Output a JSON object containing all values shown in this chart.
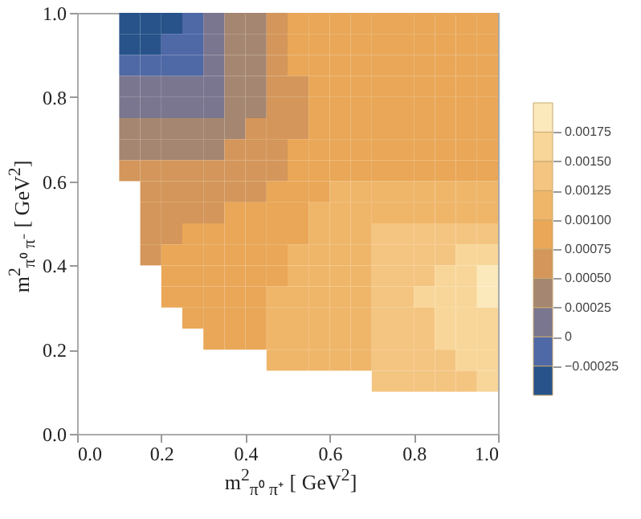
{
  "chart_data": {
    "type": "heatmap",
    "xlabel": "m$^{2}$$_{π⁰ π⁺}$ [ GeV$^{2}$]",
    "ylabel": "m$^{2}$$_{π⁰ π⁻}$ [ GeV$^{2}$]",
    "x": [
      0.025,
      0.075,
      0.125,
      0.175,
      0.225,
      0.275,
      0.325,
      0.375,
      0.425,
      0.475,
      0.525,
      0.575,
      0.625,
      0.675,
      0.725,
      0.775,
      0.825,
      0.875,
      0.925,
      0.975
    ],
    "y": [
      0.975,
      0.925,
      0.875,
      0.825,
      0.775,
      0.725,
      0.675,
      0.625,
      0.575,
      0.525,
      0.475,
      0.425,
      0.375,
      0.325,
      0.275,
      0.225,
      0.175,
      0.125
    ],
    "xlim": [
      0,
      1
    ],
    "ylim": [
      0,
      1
    ],
    "xticks": [
      {
        "value": 0,
        "label": "0.0"
      },
      0.2,
      0.4,
      0.6,
      0.8,
      {
        "value": 1,
        "label": "1.0"
      }
    ],
    "yticks": [
      {
        "value": 0,
        "label": "0.0"
      },
      0.2,
      0.4,
      0.6,
      0.8,
      {
        "value": 1,
        "label": "1.0"
      }
    ],
    "clim": [
      -0.0005,
      0.002
    ],
    "cticks": [
      {
        "value": -0.00025,
        "label": "−0.00025"
      },
      0,
      0.00025,
      {
        "value": 0.0005,
        "label": "0.00050"
      },
      0.00075,
      {
        "value": 0.001,
        "label": "0.00100"
      },
      0.00125,
      {
        "value": 0.0015,
        "label": "0.00150"
      },
      0.00175
    ],
    "colors": [
      "#27538a",
      "#4f68a6",
      "#7a768f",
      "#a58670",
      "#d4965a",
      "#e9a757",
      "#efb66a",
      "#f4c581",
      "#f8d699",
      "#fbe9bb"
    ],
    "cells": [
      [
        null,
        null,
        -0.0004,
        -0.0004,
        -0.0004,
        -0.000125,
        0.000125,
        0.000375,
        0.000375,
        0.000625,
        0.000875,
        0.000875,
        0.000875,
        0.000875,
        0.000875,
        0.000875,
        0.000875,
        0.000875,
        0.000875,
        0.000875
      ],
      [
        null,
        null,
        -0.0004,
        -0.0004,
        -0.000125,
        -0.000125,
        0.000125,
        0.000375,
        0.000375,
        0.000625,
        0.000875,
        0.000875,
        0.000875,
        0.000875,
        0.000875,
        0.000875,
        0.000875,
        0.000875,
        0.000875,
        0.000875
      ],
      [
        null,
        null,
        -0.000125,
        -0.000125,
        -0.000125,
        -0.000125,
        0.000125,
        0.000375,
        0.000375,
        0.000625,
        0.000875,
        0.000875,
        0.000875,
        0.000875,
        0.000875,
        0.000875,
        0.000875,
        0.000875,
        0.000875,
        0.000875
      ],
      [
        null,
        null,
        0.000125,
        0.000125,
        0.000125,
        0.000125,
        0.000125,
        0.000375,
        0.000375,
        0.000625,
        0.000625,
        0.000875,
        0.000875,
        0.000875,
        0.000875,
        0.000875,
        0.000875,
        0.000875,
        0.000875,
        0.000875
      ],
      [
        null,
        null,
        0.000125,
        0.000125,
        0.000125,
        0.000125,
        0.000125,
        0.000375,
        0.000375,
        0.000625,
        0.000625,
        0.000875,
        0.000875,
        0.000875,
        0.000875,
        0.000875,
        0.000875,
        0.000875,
        0.000875,
        0.000875
      ],
      [
        null,
        null,
        0.000375,
        0.000375,
        0.000375,
        0.000375,
        0.000375,
        0.000375,
        0.000625,
        0.000625,
        0.000625,
        0.000875,
        0.000875,
        0.000875,
        0.000875,
        0.000875,
        0.000875,
        0.000875,
        0.000875,
        0.000875
      ],
      [
        null,
        null,
        0.000375,
        0.000375,
        0.000375,
        0.000375,
        0.000375,
        0.000625,
        0.000625,
        0.000625,
        0.000875,
        0.000875,
        0.000875,
        0.000875,
        0.000875,
        0.000875,
        0.000875,
        0.000875,
        0.000875,
        0.000875
      ],
      [
        null,
        null,
        0.000625,
        0.000625,
        0.000625,
        0.000625,
        0.000625,
        0.000625,
        0.000625,
        0.000625,
        0.000875,
        0.000875,
        0.000875,
        0.000875,
        0.000875,
        0.000875,
        0.000875,
        0.000875,
        0.000875,
        0.000875
      ],
      [
        null,
        null,
        null,
        0.000625,
        0.000625,
        0.000625,
        0.000625,
        0.000625,
        0.000625,
        0.000875,
        0.000875,
        0.000875,
        0.001125,
        0.001125,
        0.001125,
        0.001125,
        0.001125,
        0.001125,
        0.001125,
        0.001125
      ],
      [
        null,
        null,
        null,
        0.000625,
        0.000625,
        0.000625,
        0.000625,
        0.000875,
        0.000875,
        0.000875,
        0.000875,
        0.001125,
        0.001125,
        0.001125,
        0.001125,
        0.001125,
        0.001125,
        0.001125,
        0.001125,
        0.001125
      ],
      [
        null,
        null,
        null,
        0.000625,
        0.000625,
        0.000875,
        0.000875,
        0.000875,
        0.000875,
        0.000875,
        0.000875,
        0.001125,
        0.001125,
        0.001125,
        0.001375,
        0.001375,
        0.001375,
        0.001375,
        0.001375,
        0.001375
      ],
      [
        null,
        null,
        null,
        0.000625,
        0.000875,
        0.000875,
        0.000875,
        0.000875,
        0.000875,
        0.000875,
        0.001125,
        0.001125,
        0.001125,
        0.001125,
        0.001375,
        0.001375,
        0.001375,
        0.001375,
        0.001625,
        0.001625
      ],
      [
        null,
        null,
        null,
        null,
        0.000875,
        0.000875,
        0.000875,
        0.000875,
        0.000875,
        0.000875,
        0.001125,
        0.001125,
        0.001125,
        0.001125,
        0.001375,
        0.001375,
        0.001375,
        0.001625,
        0.001625,
        0.00185
      ],
      [
        null,
        null,
        null,
        null,
        0.000875,
        0.000875,
        0.000875,
        0.000875,
        0.000875,
        0.001125,
        0.001125,
        0.001125,
        0.001125,
        0.001125,
        0.001375,
        0.001375,
        0.001625,
        0.001625,
        0.001625,
        0.00185
      ],
      [
        null,
        null,
        null,
        null,
        null,
        0.000875,
        0.000875,
        0.000875,
        0.000875,
        0.001125,
        0.001125,
        0.001125,
        0.001125,
        0.001125,
        0.001375,
        0.001375,
        0.001375,
        0.001625,
        0.001625,
        0.001625
      ],
      [
        null,
        null,
        null,
        null,
        null,
        null,
        0.000875,
        0.000875,
        0.000875,
        0.001125,
        0.001125,
        0.001125,
        0.001125,
        0.001125,
        0.001375,
        0.001375,
        0.001375,
        0.001625,
        0.001625,
        0.001625
      ],
      [
        null,
        null,
        null,
        null,
        null,
        null,
        null,
        null,
        null,
        0.001125,
        0.001125,
        0.001125,
        0.001125,
        0.001125,
        0.001375,
        0.001375,
        0.001375,
        0.001375,
        0.001625,
        0.001625
      ],
      [
        null,
        null,
        null,
        null,
        null,
        null,
        null,
        null,
        null,
        null,
        null,
        null,
        null,
        null,
        0.001375,
        0.001375,
        0.001375,
        0.001375,
        0.001375,
        0.001625
      ]
    ]
  }
}
